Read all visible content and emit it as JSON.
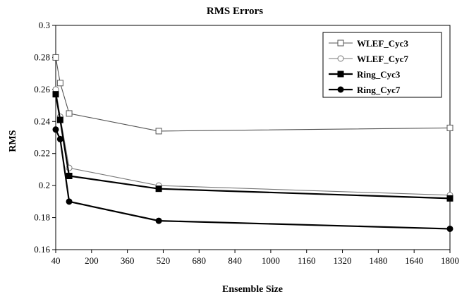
{
  "chart_data": {
    "type": "line",
    "title": "RMS Errors",
    "xlabel": "Ensemble Size",
    "ylabel": "RMS",
    "xlim": [
      40,
      1800
    ],
    "ylim": [
      0.16,
      0.3
    ],
    "x_ticks": [
      40,
      200,
      360,
      520,
      680,
      840,
      1000,
      1160,
      1320,
      1480,
      1640,
      1800
    ],
    "y_ticks": [
      0.16,
      0.18,
      0.2,
      0.22,
      0.24,
      0.26,
      0.28,
      0.3
    ],
    "x_tick_labels": [
      "40",
      "200",
      "360",
      "520",
      "680",
      "840",
      "1000",
      "1160",
      "1320",
      "1480",
      "1640",
      "1800"
    ],
    "y_tick_labels": [
      "0.16",
      "0.18",
      "0.2",
      "0.22",
      "0.24",
      "0.26",
      "0.28",
      "0.3"
    ],
    "grid": false,
    "legend_position": "top-right",
    "series": [
      {
        "name": "WLEF_Cyc3",
        "marker": "square-open",
        "line_color": "#555555",
        "line_width": "thin",
        "x": [
          40,
          60,
          100,
          500,
          1800
        ],
        "y": [
          0.28,
          0.264,
          0.245,
          0.234,
          0.236
        ]
      },
      {
        "name": "WLEF_Cyc7",
        "marker": "circle-open",
        "line_color": "#777777",
        "line_width": "thin",
        "x": [
          40,
          60,
          100,
          500,
          1800
        ],
        "y": [
          0.26,
          0.243,
          0.211,
          0.2,
          0.194
        ]
      },
      {
        "name": "Ring_Cyc3",
        "marker": "square-filled",
        "line_color": "#000000",
        "line_width": "thick",
        "x": [
          40,
          60,
          100,
          500,
          1800
        ],
        "y": [
          0.257,
          0.241,
          0.206,
          0.198,
          0.192
        ]
      },
      {
        "name": "Ring_Cyc7",
        "marker": "circle-filled",
        "line_color": "#000000",
        "line_width": "thick",
        "x": [
          40,
          60,
          100,
          500,
          1800
        ],
        "y": [
          0.235,
          0.229,
          0.19,
          0.178,
          0.173
        ]
      }
    ]
  }
}
